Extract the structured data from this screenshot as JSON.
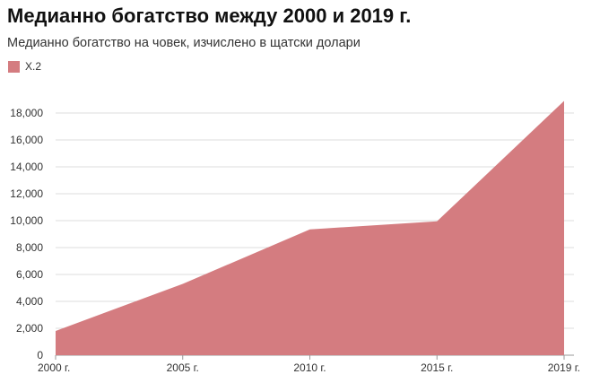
{
  "chart_data": {
    "type": "area",
    "title": "Медианно богатство между 2000 и 2019 г.",
    "subtitle": "Медианно богатство на човек, изчислено в щатски долари",
    "x": [
      "2000 г.",
      "2005 г.",
      "2010 г.",
      "2015 г.",
      "2019 г."
    ],
    "x_ticks": [
      "2000 г.",
      "2005 г.",
      "2010 г.",
      "2015 г.",
      "2019 г."
    ],
    "series": [
      {
        "name": "Х.2",
        "values": [
          1800,
          5300,
          9350,
          9950,
          18900
        ],
        "color": "#d47c80"
      }
    ],
    "ylim": [
      0,
      18000
    ],
    "y_ticks": [
      0,
      2000,
      4000,
      6000,
      8000,
      10000,
      12000,
      14000,
      16000,
      18000
    ],
    "y_tick_labels": [
      "0",
      "2,000",
      "4,000",
      "6,000",
      "8,000",
      "10,000",
      "12,000",
      "14,000",
      "16,000",
      "18,000"
    ],
    "grid": true,
    "legend_position": "top-left"
  }
}
